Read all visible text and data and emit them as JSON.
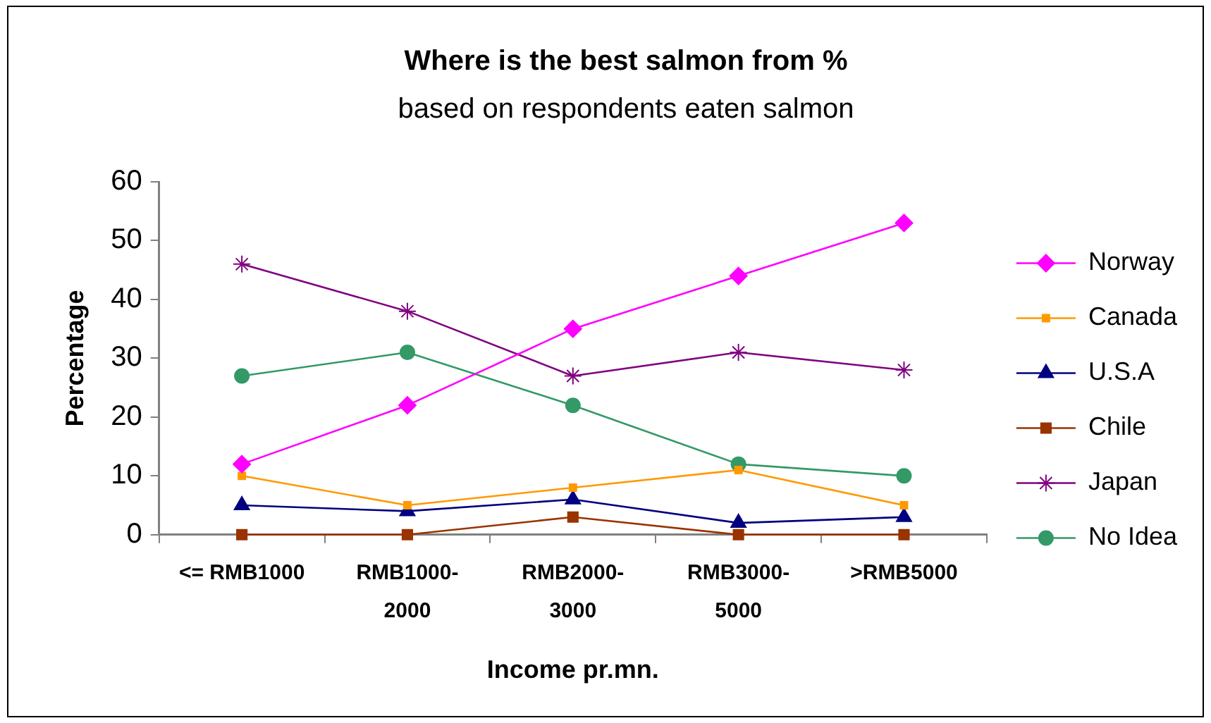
{
  "chart_data": {
    "type": "line",
    "title": "Where is the best salmon from %",
    "subtitle": "based on respondents eaten salmon",
    "xlabel": "Income pr.mn.",
    "ylabel": "Percentage",
    "categories": [
      "<= RMB1000",
      "RMB1000-2000",
      "RMB2000-3000",
      "RMB3000-5000",
      ">RMB5000"
    ],
    "ylim": [
      0,
      60
    ],
    "yticks": [
      0,
      10,
      20,
      30,
      40,
      50,
      60
    ],
    "legend": "right",
    "series": [
      {
        "name": "Norway",
        "color": "#ff00ff",
        "marker": "diamond",
        "values": [
          12,
          22,
          35,
          44,
          53
        ]
      },
      {
        "name": "Canada",
        "color": "#ff9900",
        "marker": "square",
        "values": [
          10,
          5,
          8,
          11,
          5
        ]
      },
      {
        "name": "U.S.A",
        "color": "#000080",
        "marker": "triangle",
        "values": [
          5,
          4,
          6,
          2,
          3
        ]
      },
      {
        "name": "Chile",
        "color": "#993300",
        "marker": "square",
        "values": [
          0,
          0,
          3,
          0,
          0
        ]
      },
      {
        "name": "Japan",
        "color": "#800080",
        "marker": "cross",
        "values": [
          46,
          38,
          27,
          31,
          28
        ]
      },
      {
        "name": "No Idea",
        "color": "#339966",
        "marker": "circle",
        "values": [
          27,
          31,
          22,
          12,
          10
        ]
      }
    ]
  }
}
